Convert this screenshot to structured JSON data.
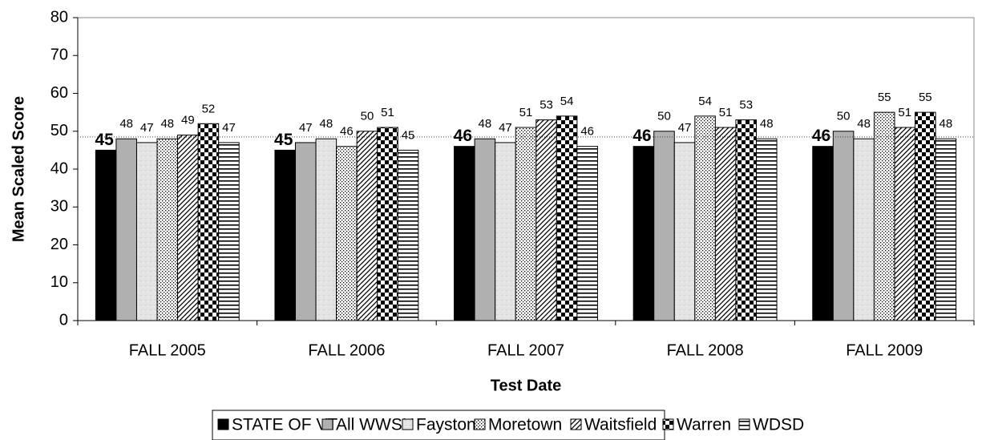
{
  "chart_data": {
    "type": "bar",
    "xlabel": "Test Date",
    "ylabel": "Mean Scaled Score",
    "categories": [
      "FALL 2005",
      "FALL 2006",
      "FALL 2007",
      "FALL 2008",
      "FALL 2009"
    ],
    "series": [
      {
        "name": "STATE OF VT",
        "color": "#000000",
        "pattern": "solid",
        "values": [
          45,
          45,
          46,
          46,
          46
        ]
      },
      {
        "name": "All WWSU",
        "color": "#b0b0b0",
        "pattern": "solid",
        "values": [
          48,
          47,
          48,
          50,
          50
        ]
      },
      {
        "name": "Fayston",
        "color": "#e2e2e2",
        "pattern": "texture",
        "values": [
          47,
          48,
          47,
          47,
          48
        ]
      },
      {
        "name": "Moretown",
        "color": "#000000",
        "pattern": "dots",
        "values": [
          48,
          46,
          51,
          54,
          55
        ]
      },
      {
        "name": "Waitsfield",
        "color": "#000000",
        "pattern": "diagonal",
        "values": [
          49,
          50,
          53,
          51,
          51
        ]
      },
      {
        "name": "Warren",
        "color": "#000000",
        "pattern": "checker",
        "values": [
          52,
          51,
          54,
          53,
          55
        ]
      },
      {
        "name": "WDSD",
        "color": "#000000",
        "pattern": "horizontal",
        "values": [
          47,
          45,
          46,
          48,
          48
        ]
      }
    ],
    "reference_line": 48.5,
    "ylim": [
      0,
      80
    ],
    "yticks": [
      0,
      10,
      20,
      30,
      40,
      50,
      60,
      70,
      80
    ],
    "legend": "bottom"
  }
}
